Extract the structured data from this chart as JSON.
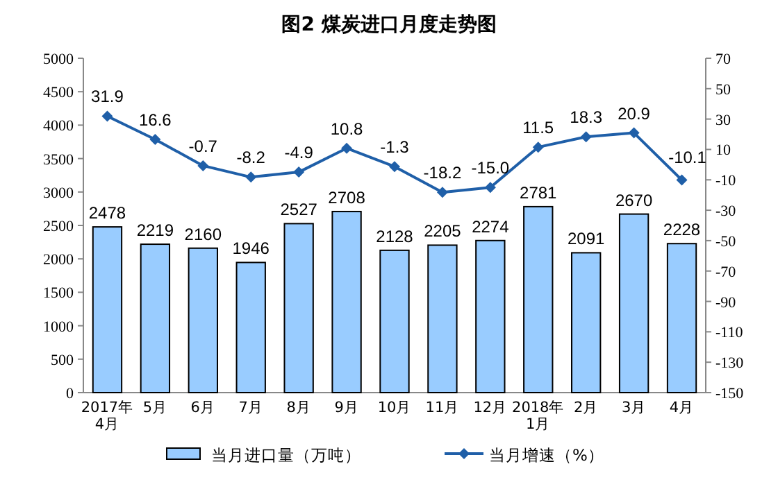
{
  "chart_data": {
    "type": "bar",
    "title": "图2  煤炭进口月度走势图",
    "categories": [
      "2017年\n4月",
      "5月",
      "6月",
      "7月",
      "8月",
      "9月",
      "10月",
      "11月",
      "12月",
      "2018年\n1月",
      "2月",
      "3月",
      "4月"
    ],
    "series": [
      {
        "name": "当月进口量（万吨）",
        "color": "#99ccff",
        "values": [
          2478,
          2219,
          2160,
          1946,
          2527,
          2708,
          2128,
          2205,
          2274,
          2781,
          2091,
          2670,
          2228
        ]
      },
      {
        "name": "当月增速（%）",
        "type": "line",
        "axis": "y2",
        "color": "#1f5fa8",
        "marker": "diamond",
        "values": [
          31.9,
          16.6,
          -0.7,
          -8.2,
          -4.9,
          10.8,
          -1.3,
          -18.2,
          -15.0,
          11.5,
          18.3,
          20.9,
          -10.1
        ],
        "value_labels": [
          "31.9",
          "16.6",
          "-0.7",
          "-8.2",
          "-4.9",
          "10.8",
          "-1.3",
          "-18.2",
          "-15.0",
          "11.5",
          "18.3",
          "20.9",
          "-10.1"
        ]
      }
    ],
    "ylim": [
      0,
      5000
    ],
    "yticks": [
      0,
      500,
      1000,
      1500,
      2000,
      2500,
      3000,
      3500,
      4000,
      4500,
      5000
    ],
    "y2lim": [
      -150,
      70
    ],
    "y2ticks": [
      -150,
      -130,
      -110,
      -90,
      -70,
      -50,
      -30,
      -10,
      10,
      30,
      50,
      70
    ],
    "data_labels": true,
    "legend": "bottom",
    "grid": false
  }
}
